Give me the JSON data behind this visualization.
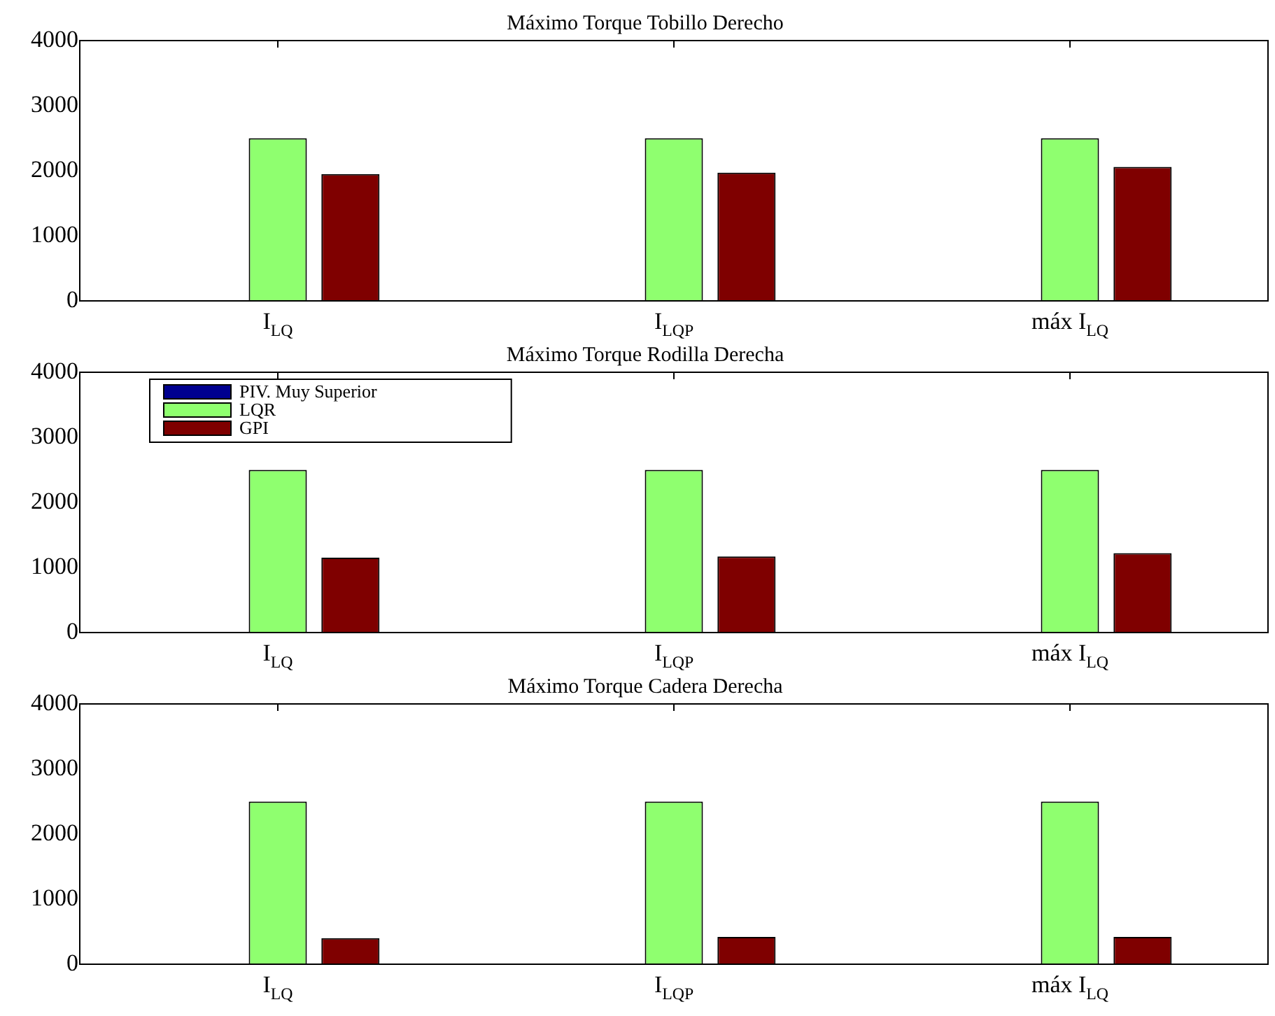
{
  "chart_data": [
    {
      "type": "bar",
      "title": "Máximo Torque Tobillo Derecho",
      "categories": [
        "I$_{LQ}$",
        "I$_{LQP}$",
        "máx I$_{LQ}$"
      ],
      "ylim": [
        0,
        4000
      ],
      "yticks": [
        0,
        1000,
        2000,
        3000,
        4000
      ],
      "grid": false,
      "legend": false,
      "series": [
        {
          "color": "#00008f",
          "values": [
            0,
            0,
            0
          ]
        },
        {
          "color": "#8fff6f",
          "values": [
            2500,
            2500,
            2500
          ]
        },
        {
          "color": "#7f0000",
          "values": [
            1950,
            1970,
            2060
          ]
        }
      ]
    },
    {
      "type": "bar",
      "title": "Máximo Torque Rodilla Derecha",
      "categories": [
        "I$_{LQ}$",
        "I$_{LQP}$",
        "máx I$_{LQ}$"
      ],
      "ylim": [
        0,
        4000
      ],
      "yticks": [
        0,
        1000,
        2000,
        3000,
        4000
      ],
      "grid": false,
      "legend": "top left",
      "series": [
        {
          "name": "PIV. Muy Superior",
          "color": "#00008f",
          "values": [
            0,
            0,
            0
          ]
        },
        {
          "name": "LQR",
          "color": "#8fff6f",
          "values": [
            2500,
            2500,
            2500
          ]
        },
        {
          "name": "GPI",
          "color": "#7f0000",
          "values": [
            1150,
            1170,
            1220
          ]
        }
      ]
    },
    {
      "type": "bar",
      "title": "Máximo Torque Cadera Derecha",
      "categories": [
        "I$_{LQ}$",
        "I$_{LQP}$",
        "máx I$_{LQ}$"
      ],
      "ylim": [
        0,
        4000
      ],
      "yticks": [
        0,
        1000,
        2000,
        3000,
        4000
      ],
      "grid": false,
      "legend": false,
      "series": [
        {
          "color": "#00008f",
          "values": [
            0,
            0,
            0
          ]
        },
        {
          "color": "#8fff6f",
          "values": [
            2500,
            2500,
            2500
          ]
        },
        {
          "color": "#7f0000",
          "values": [
            400,
            420,
            420
          ]
        }
      ]
    }
  ]
}
